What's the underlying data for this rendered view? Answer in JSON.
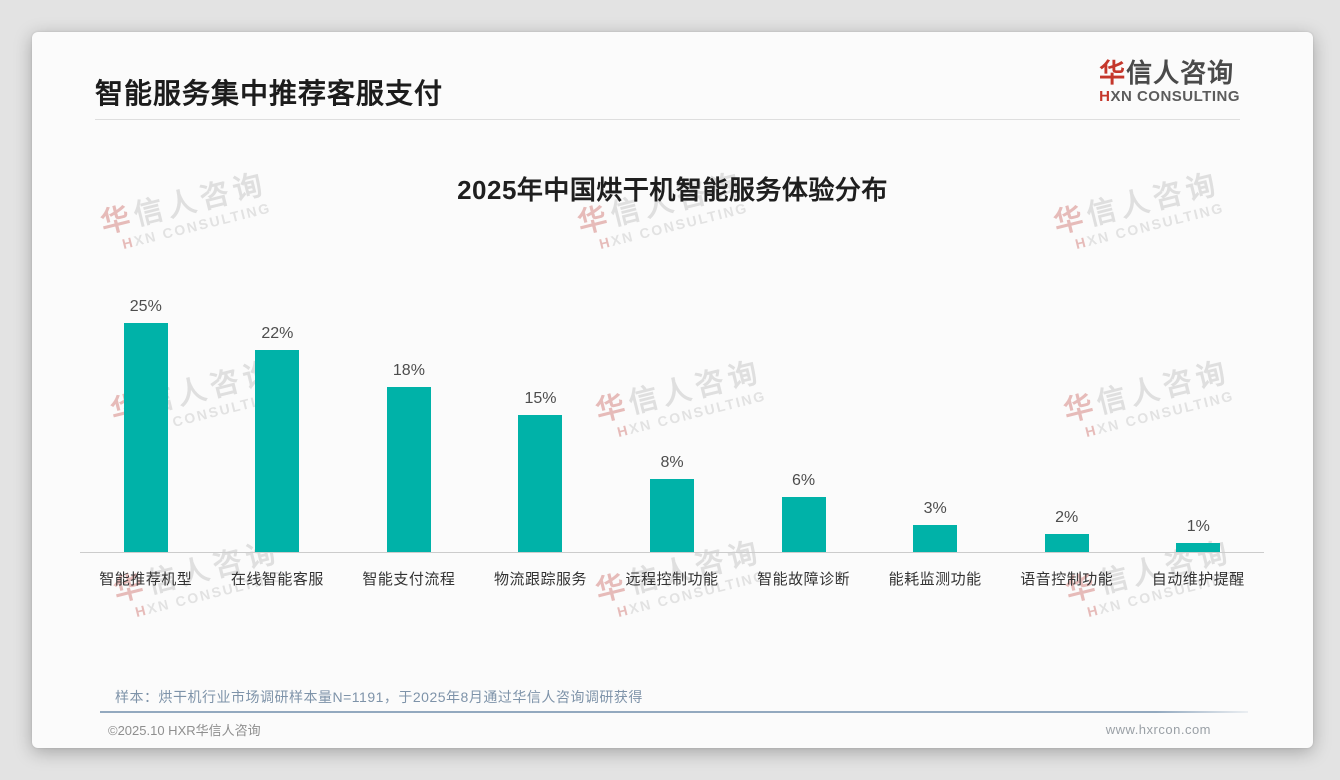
{
  "page": {
    "title": "智能服务集中推荐客服支付"
  },
  "logo": {
    "cn_first": "华",
    "cn_rest": "信人咨询",
    "en_first": "H",
    "en_rest": "XN CONSULTING"
  },
  "watermark": {
    "cn_first": "华",
    "cn_rest": "信人咨询",
    "en_first": "H",
    "en_rest": "XN CONSULTING"
  },
  "chart_data": {
    "type": "bar",
    "title": "2025年中国烘干机智能服务体验分布",
    "categories": [
      "智能推荐机型",
      "在线智能客服",
      "智能支付流程",
      "物流跟踪服务",
      "远程控制功能",
      "智能故障诊断",
      "能耗监测功能",
      "语音控制功能",
      "自动维护提醒"
    ],
    "values": [
      25,
      22,
      18,
      15,
      8,
      6,
      3,
      2,
      1
    ],
    "value_labels": [
      "25%",
      "22%",
      "18%",
      "15%",
      "8%",
      "6%",
      "3%",
      "2%",
      "1%"
    ],
    "unit": "%",
    "ylim": [
      0,
      25
    ],
    "bar_color": "#00b2a8",
    "grid": false,
    "legend": false,
    "xlabel": "",
    "ylabel": ""
  },
  "footer": {
    "note": "样本：烘干机行业市场调研样本量N=1191，于2025年8月通过华信人咨询调研获得",
    "copyright": "©2025.10 HXR华信人咨询",
    "website": "www.hxrcon.com"
  }
}
